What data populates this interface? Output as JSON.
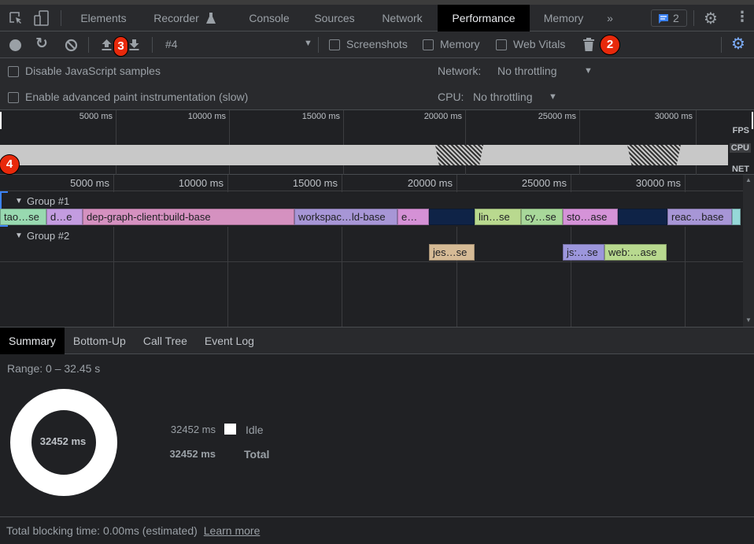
{
  "tabs": {
    "items": [
      "Elements",
      "Recorder",
      "Console",
      "Sources",
      "Network",
      "Performance",
      "Memory"
    ],
    "active": "Performance",
    "issues_count": "2"
  },
  "toolbar": {
    "profile": "#4",
    "screenshots": "Screenshots",
    "memory": "Memory",
    "web_vitals": "Web Vitals"
  },
  "settings": {
    "disable_js_samples": "Disable JavaScript samples",
    "advanced_paint": "Enable advanced paint instrumentation (slow)",
    "network_label": "Network:",
    "network_value": "No throttling",
    "cpu_label": "CPU:",
    "cpu_value": "No throttling"
  },
  "annotations": [
    "2",
    "3",
    "4"
  ],
  "overview": {
    "ticks": [
      "5000 ms",
      "10000 ms",
      "15000 ms",
      "20000 ms",
      "25000 ms",
      "30000 ms"
    ],
    "tracks": [
      "FPS",
      "CPU",
      "NET"
    ]
  },
  "timeline": {
    "ticks": [
      "5000 ms",
      "10000 ms",
      "15000 ms",
      "20000 ms",
      "25000 ms",
      "30000 ms"
    ],
    "groups": [
      {
        "label": "Group #1",
        "bars": [
          {
            "label": "tao…se",
            "start": 0,
            "end": 2034,
            "color": "#98d9b0"
          },
          {
            "label": "d…e",
            "start": 2034,
            "end": 3620,
            "color": "#c39ce0"
          },
          {
            "label": "dep-graph-client:build-base",
            "start": 3620,
            "end": 12897,
            "color": "#d591c0"
          },
          {
            "label": "workspac…ld-base",
            "start": 12897,
            "end": 17414,
            "color": "#a796d6"
          },
          {
            "label": "e…",
            "start": 17414,
            "end": 18793,
            "color": "#d591d6"
          },
          {
            "label": "",
            "start": 18793,
            "end": 20793,
            "color": "#0f2347"
          },
          {
            "label": "lin…se",
            "start": 20793,
            "end": 22828,
            "color": "#b9d98f"
          },
          {
            "label": "cy…se",
            "start": 22828,
            "end": 24655,
            "color": "#a8d89a"
          },
          {
            "label": "sto…ase",
            "start": 24655,
            "end": 27069,
            "color": "#d593d8"
          },
          {
            "label": "",
            "start": 27069,
            "end": 29241,
            "color": "#0f2347"
          },
          {
            "label": "reac…base",
            "start": 29241,
            "end": 32069,
            "color": "#a796d6"
          },
          {
            "label": "",
            "start": 32069,
            "end": 32452,
            "color": "#96d8d8"
          }
        ]
      },
      {
        "label": "Group #2",
        "bars": [
          {
            "label": "jes…se",
            "start": 18793,
            "end": 20793,
            "color": "#d6bb96"
          },
          {
            "label": "js:…se",
            "start": 24655,
            "end": 26483,
            "color": "#9c96dc"
          },
          {
            "label": "web:…ase",
            "start": 26483,
            "end": 29207,
            "color": "#b8d98f"
          }
        ]
      }
    ]
  },
  "bottom_tabs": [
    "Summary",
    "Bottom-Up",
    "Call Tree",
    "Event Log"
  ],
  "summary": {
    "range": "Range: 0 – 32.45 s",
    "total_center": "32452 ms",
    "rows": [
      {
        "value": "32452 ms",
        "label": "Idle",
        "color": "#ffffff"
      },
      {
        "value": "32452 ms",
        "label": "Total"
      }
    ]
  },
  "footer": {
    "text": "Total blocking time: 0.00ms (estimated)",
    "link": "Learn more"
  }
}
